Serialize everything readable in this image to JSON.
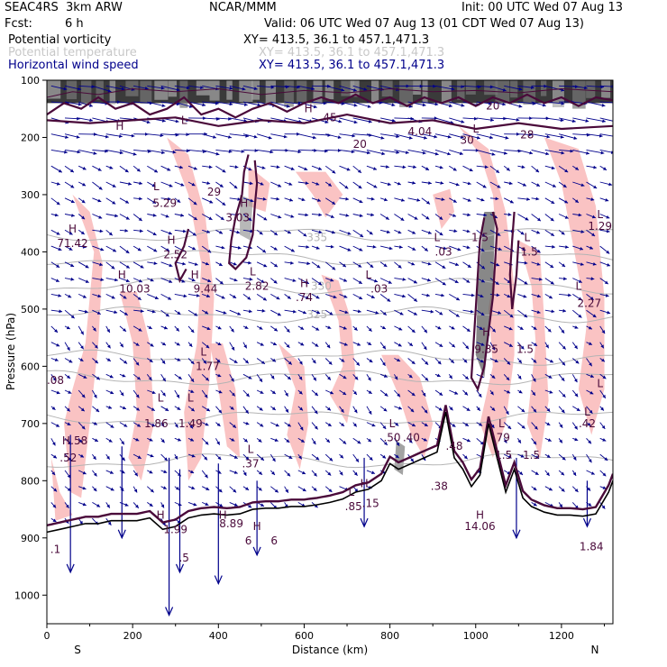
{
  "header": {
    "model": "SEAC4RS  3km ARW",
    "org": "NCAR/MMM",
    "init": "Init: 00 UTC Wed 07 Aug 13",
    "fcst_label": "Fcst:",
    "fcst_value": "6 h",
    "valid": "Valid: 06 UTC Wed 07 Aug 13 (01 CDT Wed 07 Aug 13)"
  },
  "legend": [
    {
      "name": "Potential vorticity",
      "xy": "XY= 413.5, 36.1 to 457.1,471.3",
      "color": "#000000"
    },
    {
      "name": "Potential temperature",
      "xy": "XY= 413.5, 36.1 to 457.1,471.3",
      "color": "#b4b4b4"
    },
    {
      "name": "Horizontal wind speed",
      "xy": "XY= 413.5, 36.1 to 457.1,471.3",
      "color": "#00008b"
    }
  ],
  "chart_data": {
    "type": "cross-section",
    "xlabel": "Distance (km)",
    "ylabel": "Pressure (hPa)",
    "xlim": [
      0,
      1320
    ],
    "ylim": [
      1050,
      100
    ],
    "x_ticks": [
      0,
      200,
      400,
      600,
      800,
      1000,
      1200
    ],
    "y_ticks": [
      100,
      200,
      300,
      400,
      500,
      600,
      700,
      800,
      900,
      1000
    ],
    "x_end_labels": {
      "left": "S",
      "right": "N"
    },
    "colors": {
      "pv_contour": "#4a0a3a",
      "theta": "#b4b4b4",
      "wind": "#00008b",
      "shade": "#f9b8b8",
      "terrain": "#000000"
    },
    "theta_contours": [
      {
        "label": "325",
        "km": 630,
        "hpa": 510
      },
      {
        "label": "330",
        "km": 640,
        "hpa": 460
      },
      {
        "label": "335",
        "km": 630,
        "hpa": 375
      }
    ],
    "terrain_profile": {
      "km": [
        0,
        30,
        60,
        90,
        120,
        150,
        180,
        210,
        240,
        270,
        300,
        330,
        360,
        390,
        420,
        450,
        480,
        510,
        540,
        570,
        600,
        630,
        660,
        690,
        720,
        750,
        780,
        800,
        820,
        850,
        880,
        910,
        930,
        950,
        970,
        990,
        1010,
        1030,
        1050,
        1070,
        1090,
        1110,
        1130,
        1160,
        1190,
        1220,
        1250,
        1280,
        1310,
        1320
      ],
      "hpa": [
        890,
        885,
        880,
        875,
        875,
        870,
        870,
        870,
        865,
        885,
        880,
        865,
        860,
        858,
        860,
        858,
        850,
        848,
        848,
        845,
        845,
        842,
        838,
        832,
        820,
        815,
        800,
        770,
        780,
        770,
        760,
        750,
        680,
        760,
        780,
        810,
        790,
        700,
        760,
        820,
        780,
        830,
        845,
        855,
        860,
        860,
        862,
        858,
        820,
        800
      ]
    },
    "labels": [
      {
        "text": "H",
        "km": 170,
        "hpa": 180
      },
      {
        "text": "L",
        "km": 320,
        "hpa": 170
      },
      {
        "text": "H",
        "km": 610,
        "hpa": 150
      },
      {
        "text": "L",
        "km": 1000,
        "hpa": 185
      },
      {
        "text": "4.04",
        "km": 870,
        "hpa": 190
      },
      {
        "text": "45",
        "km": 660,
        "hpa": 165
      },
      {
        "text": "20",
        "km": 1040,
        "hpa": 145
      },
      {
        "text": "30",
        "km": 980,
        "hpa": 205
      },
      {
        "text": "28",
        "km": 1120,
        "hpa": 195
      },
      {
        "text": "20",
        "km": 730,
        "hpa": 212
      },
      {
        "text": "29",
        "km": 390,
        "hpa": 295
      },
      {
        "text": "L",
        "km": 255,
        "hpa": 286
      },
      {
        "text": "H",
        "km": 460,
        "hpa": 315
      },
      {
        "text": "3.03",
        "km": 445,
        "hpa": 340
      },
      {
        "text": "5.29",
        "km": 275,
        "hpa": 315
      },
      {
        "text": "H",
        "km": 60,
        "hpa": 360
      },
      {
        "text": "71.42",
        "km": 60,
        "hpa": 385
      },
      {
        "text": "H",
        "km": 290,
        "hpa": 380
      },
      {
        "text": "2.52",
        "km": 300,
        "hpa": 405
      },
      {
        "text": "H",
        "km": 175,
        "hpa": 440
      },
      {
        "text": "10.03",
        "km": 205,
        "hpa": 465
      },
      {
        "text": "H",
        "km": 345,
        "hpa": 440
      },
      {
        "text": "9.44",
        "km": 370,
        "hpa": 465
      },
      {
        "text": "L",
        "km": 480,
        "hpa": 435
      },
      {
        "text": "2.82",
        "km": 490,
        "hpa": 460
      },
      {
        "text": "H",
        "km": 600,
        "hpa": 455
      },
      {
        "text": ".74",
        "km": 600,
        "hpa": 480
      },
      {
        "text": "L",
        "km": 750,
        "hpa": 440
      },
      {
        "text": ".03",
        "km": 775,
        "hpa": 465
      },
      {
        "text": "L",
        "km": 910,
        "hpa": 375
      },
      {
        "text": ".03",
        "km": 925,
        "hpa": 400
      },
      {
        "text": "1.5",
        "km": 1010,
        "hpa": 375
      },
      {
        "text": "L",
        "km": 1120,
        "hpa": 375
      },
      {
        "text": "1.5",
        "km": 1125,
        "hpa": 400
      },
      {
        "text": "L",
        "km": 1240,
        "hpa": 460
      },
      {
        "text": "2.27",
        "km": 1265,
        "hpa": 490
      },
      {
        "text": "L",
        "km": 1290,
        "hpa": 335
      },
      {
        "text": "1.29",
        "km": 1290,
        "hpa": 355
      },
      {
        "text": "H",
        "km": 1025,
        "hpa": 540
      },
      {
        "text": "9.85",
        "km": 1025,
        "hpa": 570
      },
      {
        "text": "1.5",
        "km": 1115,
        "hpa": 570
      },
      {
        "text": "L",
        "km": 365,
        "hpa": 575
      },
      {
        "text": "1.77",
        "km": 375,
        "hpa": 600
      },
      {
        "text": ".08",
        "km": 20,
        "hpa": 625
      },
      {
        "text": "L",
        "km": 1290,
        "hpa": 630
      },
      {
        "text": "L",
        "km": 265,
        "hpa": 655
      },
      {
        "text": "1.86",
        "km": 255,
        "hpa": 700
      },
      {
        "text": "L",
        "km": 335,
        "hpa": 655
      },
      {
        "text": "1.49",
        "km": 335,
        "hpa": 700
      },
      {
        "text": "L",
        "km": 1260,
        "hpa": 680
      },
      {
        "text": ".42",
        "km": 1260,
        "hpa": 700
      },
      {
        "text": "L",
        "km": 805,
        "hpa": 700
      },
      {
        "text": ".50",
        "km": 805,
        "hpa": 725
      },
      {
        "text": ".40",
        "km": 850,
        "hpa": 725
      },
      {
        "text": "L",
        "km": 1060,
        "hpa": 700
      },
      {
        "text": ".79",
        "km": 1060,
        "hpa": 725
      },
      {
        "text": "H",
        "km": 45,
        "hpa": 730
      },
      {
        "text": ".58",
        "km": 75,
        "hpa": 730
      },
      {
        "text": ".52",
        "km": 50,
        "hpa": 760
      },
      {
        "text": "L",
        "km": 475,
        "hpa": 745
      },
      {
        "text": ".37",
        "km": 475,
        "hpa": 770
      },
      {
        "text": ".48",
        "km": 950,
        "hpa": 740
      },
      {
        "text": "1.5",
        "km": 1065,
        "hpa": 755
      },
      {
        "text": "1.5",
        "km": 1130,
        "hpa": 755
      },
      {
        "text": "L",
        "km": 710,
        "hpa": 820
      },
      {
        "text": "H",
        "km": 740,
        "hpa": 805
      },
      {
        "text": ".85",
        "km": 715,
        "hpa": 845
      },
      {
        "text": ".15",
        "km": 755,
        "hpa": 840
      },
      {
        "text": ".38",
        "km": 915,
        "hpa": 810
      },
      {
        "text": "H",
        "km": 265,
        "hpa": 860
      },
      {
        "text": "1.99",
        "km": 300,
        "hpa": 885
      },
      {
        "text": "H",
        "km": 410,
        "hpa": 860
      },
      {
        "text": "8.89",
        "km": 430,
        "hpa": 875
      },
      {
        "text": "H",
        "km": 490,
        "hpa": 880
      },
      {
        "text": "H",
        "km": 1010,
        "hpa": 860
      },
      {
        "text": "14.06",
        "km": 1010,
        "hpa": 880
      },
      {
        "text": "1.84",
        "km": 1270,
        "hpa": 915
      },
      {
        "text": ".1",
        "km": 20,
        "hpa": 920
      },
      {
        "text": ".5",
        "km": 320,
        "hpa": 935
      },
      {
        "text": "6",
        "km": 470,
        "hpa": 905
      },
      {
        "text": "6",
        "km": 530,
        "hpa": 905
      }
    ]
  }
}
